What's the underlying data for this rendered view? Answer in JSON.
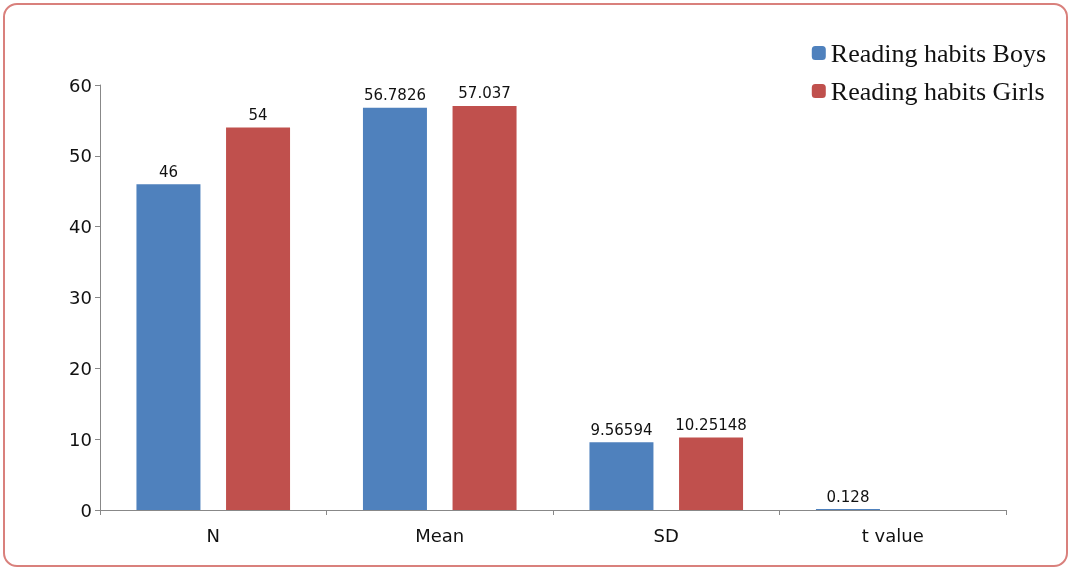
{
  "chart_data": {
    "type": "bar",
    "categories": [
      "N",
      "Mean",
      "SD",
      "t value"
    ],
    "series": [
      {
        "name": "Reading habits Boys",
        "color": "#4f81bd",
        "values": [
          46,
          56.7826,
          9.56594,
          0.128
        ]
      },
      {
        "name": "Reading habits Girls",
        "color": "#c0504d",
        "values": [
          54,
          57.037,
          10.25148,
          null
        ]
      }
    ],
    "ylim": [
      0,
      60
    ],
    "yticks": [
      0,
      10,
      20,
      30,
      40,
      50,
      60
    ],
    "grid": false,
    "legend": "top right",
    "data_labels": true
  }
}
